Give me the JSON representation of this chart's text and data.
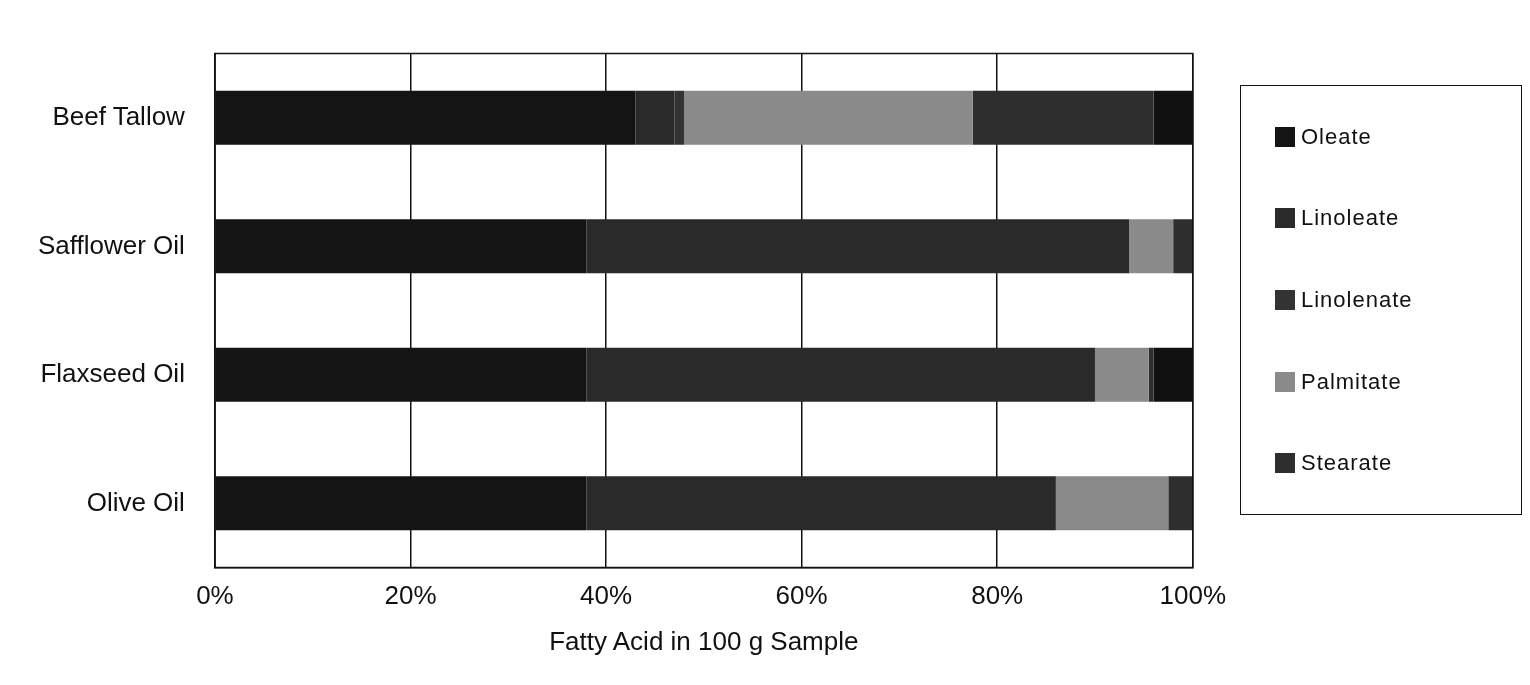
{
  "chart_data": {
    "type": "bar",
    "orientation": "horizontal",
    "stacked": true,
    "xlabel": "Fatty Acid in 100 g Sample",
    "categories": [
      "Beef Tallow",
      "Safflower Oil",
      "Flaxseed Oil",
      "Olive Oil"
    ],
    "series": [
      {
        "name": "Oleate",
        "color": "#141414",
        "values": [
          43,
          38,
          38,
          38
        ]
      },
      {
        "name": "Linoleate",
        "color": "#2a2a2a",
        "values": [
          4,
          55.5,
          52,
          48
        ]
      },
      {
        "name": "Linolenate",
        "color": "#333333",
        "values": [
          1,
          0,
          0,
          0
        ]
      },
      {
        "name": "Palmitate",
        "color": "#8a8a8a",
        "values": [
          29.5,
          4.5,
          5.5,
          11.5
        ]
      },
      {
        "name": "Stearate",
        "color": "#2e2e2e",
        "values": [
          18.5,
          2,
          0.5,
          2.5
        ]
      },
      {
        "color": "#111111",
        "values": [
          4,
          0,
          4,
          0
        ]
      }
    ],
    "xlim": [
      0,
      100
    ],
    "xticks": [
      {
        "value": 0,
        "label": "0%"
      },
      {
        "value": 20,
        "label": "20%"
      },
      {
        "value": 40,
        "label": "40%"
      },
      {
        "value": 60,
        "label": "60%"
      },
      {
        "value": 80,
        "label": "80%"
      },
      {
        "value": 100,
        "label": "100%"
      }
    ],
    "grid": "x",
    "legend": "right"
  }
}
